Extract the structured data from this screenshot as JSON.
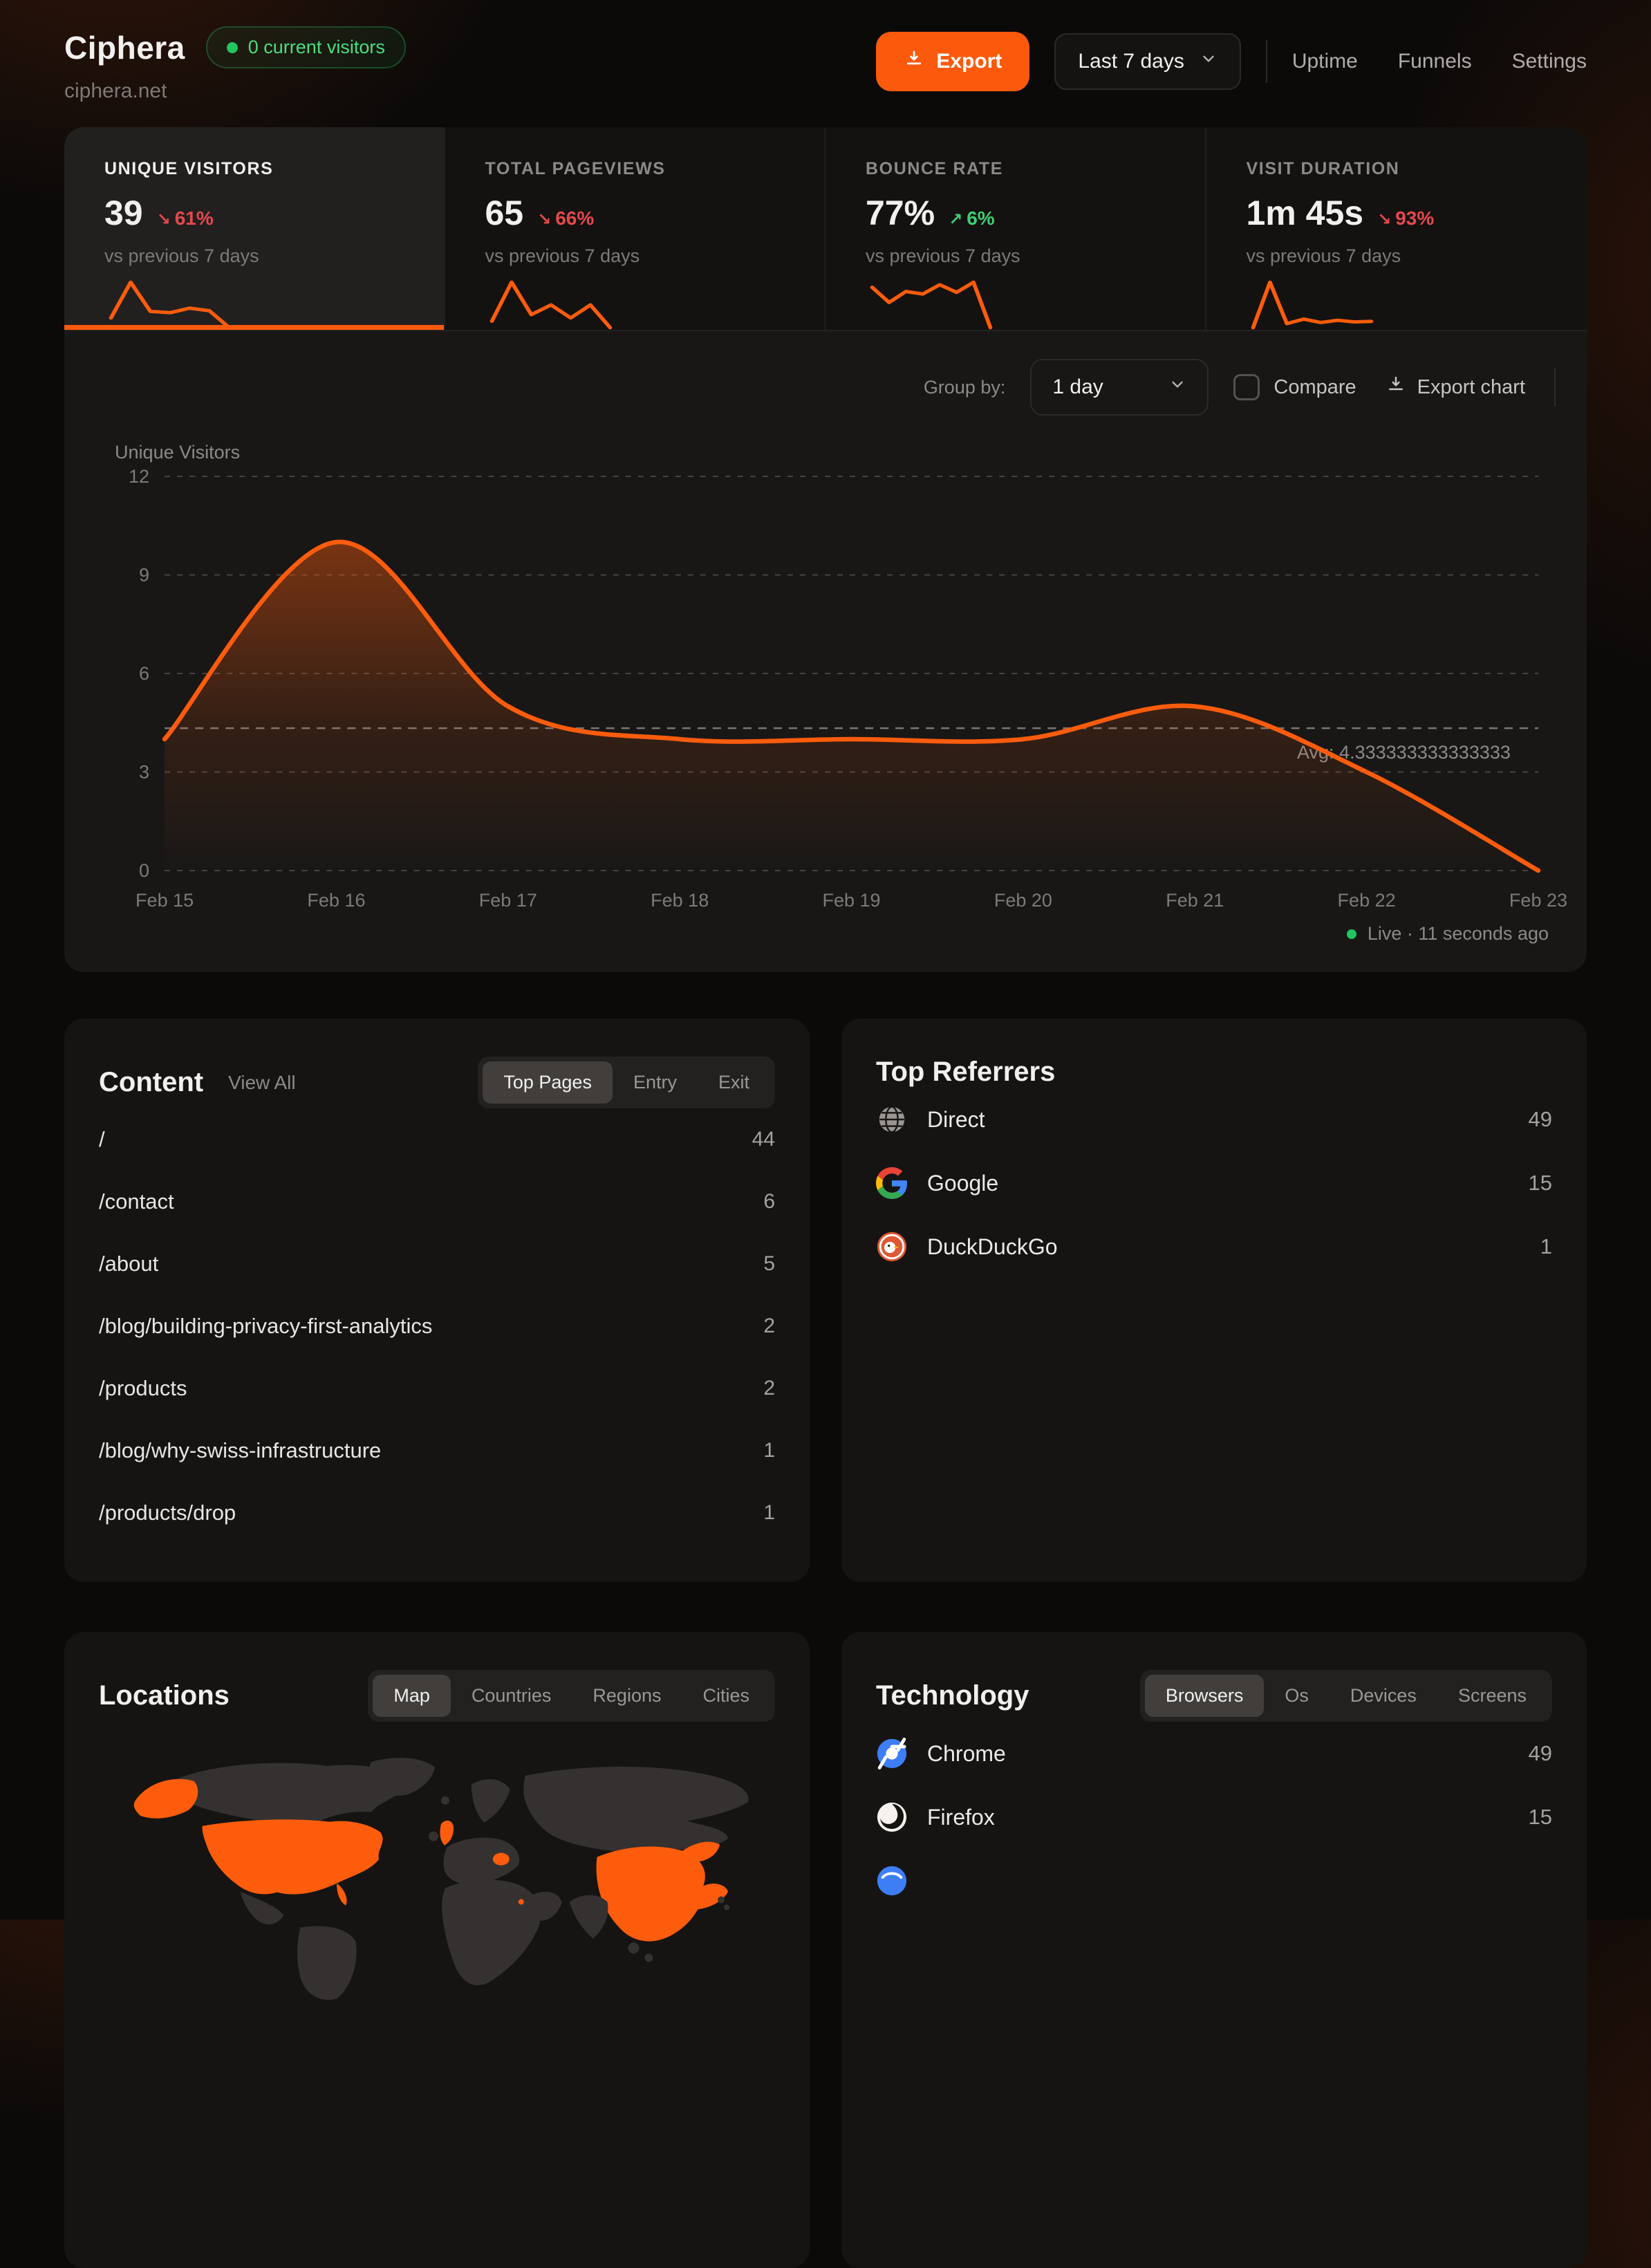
{
  "colors": {
    "accent": "#fb5a0d",
    "chart_line": "#fd5c0c",
    "negative": "#e5484d",
    "positive": "#3ecf72",
    "live_green": "#22c55e"
  },
  "header": {
    "site_name": "Ciphera",
    "domain": "ciphera.net",
    "visitors_badge": "0 current visitors",
    "export_label": "Export",
    "date_range": "Last 7 days",
    "nav": [
      {
        "label": "Uptime"
      },
      {
        "label": "Funnels"
      },
      {
        "label": "Settings"
      }
    ]
  },
  "stats": [
    {
      "label": "UNIQUE VISITORS",
      "value": "39",
      "delta": "61%",
      "trend": "down",
      "delta_color": "red",
      "sub": "vs previous 7 days",
      "active": true,
      "spark": [
        3.5,
        9,
        4.5,
        4.3,
        5,
        4.6,
        2
      ]
    },
    {
      "label": "TOTAL PAGEVIEWS",
      "value": "65",
      "delta": "66%",
      "trend": "down",
      "delta_color": "red",
      "sub": "vs previous 7 days",
      "active": false,
      "spark": [
        4,
        10,
        5,
        6.5,
        4.5,
        6.5,
        3
      ]
    },
    {
      "label": "BOUNCE RATE",
      "value": "77%",
      "delta": "6%",
      "trend": "up",
      "delta_color": "green",
      "sub": "vs previous 7 days",
      "active": false,
      "spark": [
        6,
        4.2,
        5.5,
        5.2,
        6.3,
        5.4,
        6.6,
        1.2
      ]
    },
    {
      "label": "VISIT DURATION",
      "value": "1m 45s",
      "delta": "93%",
      "trend": "down",
      "delta_color": "red",
      "sub": "vs previous 7 days",
      "active": false,
      "spark": [
        1.5,
        9.5,
        2.2,
        3,
        2.4,
        2.8,
        2.5,
        2.6
      ]
    }
  ],
  "chart_controls": {
    "group_by_label": "Group by:",
    "group_by_value": "1 day",
    "compare_label": "Compare",
    "export_label": "Export chart"
  },
  "chart_data": {
    "type": "area",
    "title": "Unique Visitors",
    "x": [
      "Feb 15",
      "Feb 16",
      "Feb 17",
      "Feb 18",
      "Feb 19",
      "Feb 20",
      "Feb 21",
      "Feb 22",
      "Feb 23"
    ],
    "values": [
      4,
      10,
      5,
      4,
      4,
      4,
      5,
      3,
      0
    ],
    "ylim": [
      0,
      12
    ],
    "yticks": [
      0,
      3,
      6,
      9,
      12
    ],
    "avg": 4.333333333333333,
    "avg_label": "Avg: 4.333333333333333",
    "grid": "dashed-horizontal",
    "legend": "none"
  },
  "live_status": "Live · 11 seconds ago",
  "content": {
    "title": "Content",
    "view_all": "View All",
    "tabs": [
      "Top Pages",
      "Entry",
      "Exit"
    ],
    "active_tab": "Top Pages",
    "rows": [
      {
        "path": "/",
        "count": "44"
      },
      {
        "path": "/contact",
        "count": "6"
      },
      {
        "path": "/about",
        "count": "5"
      },
      {
        "path": "/blog/building-privacy-first-analytics",
        "count": "2"
      },
      {
        "path": "/products",
        "count": "2"
      },
      {
        "path": "/blog/why-swiss-infrastructure",
        "count": "1"
      },
      {
        "path": "/products/drop",
        "count": "1"
      }
    ]
  },
  "referrers": {
    "title": "Top Referrers",
    "rows": [
      {
        "name": "Direct",
        "count": "49",
        "icon": "globe-icon"
      },
      {
        "name": "Google",
        "count": "15",
        "icon": "google-icon"
      },
      {
        "name": "DuckDuckGo",
        "count": "1",
        "icon": "duckduckgo-icon"
      }
    ]
  },
  "locations": {
    "title": "Locations",
    "tabs": [
      "Map",
      "Countries",
      "Regions",
      "Cities"
    ],
    "active_tab": "Map",
    "highlighted_regions": [
      "United States",
      "Alaska",
      "United Kingdom",
      "Romania",
      "Israel",
      "China"
    ]
  },
  "technology": {
    "title": "Technology",
    "tabs": [
      "Browsers",
      "Os",
      "Devices",
      "Screens"
    ],
    "active_tab": "Browsers",
    "rows": [
      {
        "name": "Chrome",
        "count": "49",
        "icon": "chrome-icon"
      },
      {
        "name": "Firefox",
        "count": "15",
        "icon": "firefox-icon"
      }
    ],
    "partial_row_icon": "browser-icon"
  }
}
